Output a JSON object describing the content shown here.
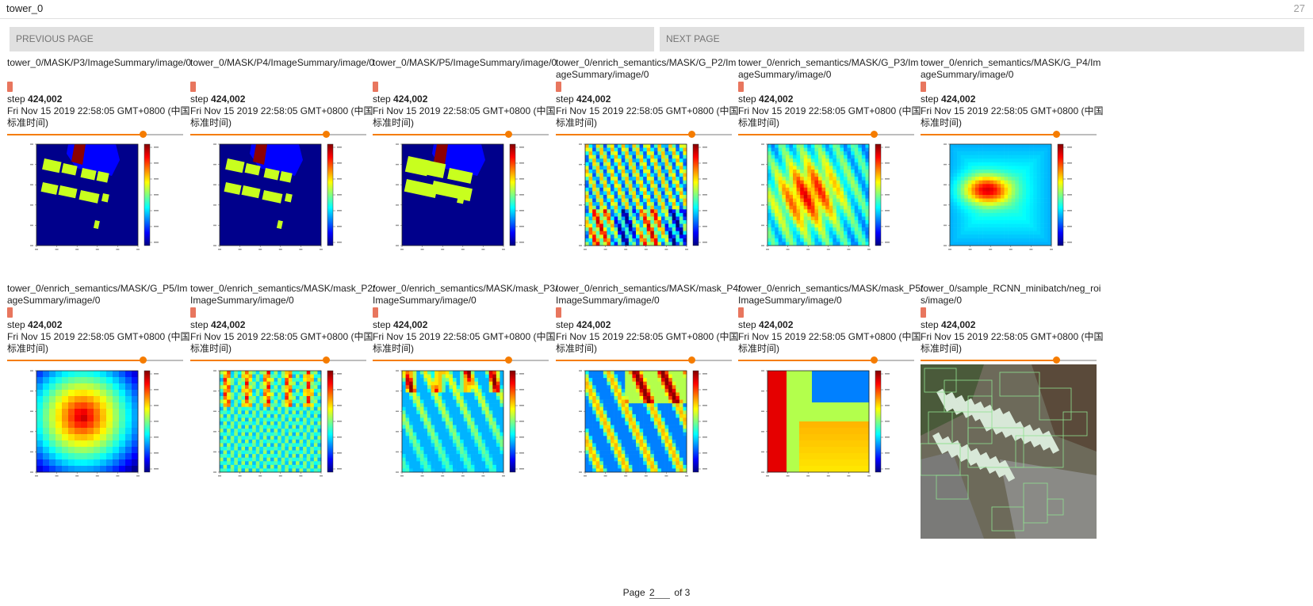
{
  "header": {
    "run_name": "tower_0",
    "count": "27"
  },
  "pager": {
    "prev_label": "PREVIOUS PAGE",
    "next_label": "NEXT PAGE"
  },
  "cards": [
    {
      "tag": "tower_0/MASK/P3/ImageSummary/image/0",
      "step_prefix": "step",
      "step": "424,002",
      "time": "Fri Nov 15 2019 22:58:05 GMT+0800 (中国标准时间)",
      "slider": 0.77,
      "image": "mask-p3"
    },
    {
      "tag": "tower_0/MASK/P4/ImageSummary/image/0",
      "step_prefix": "step",
      "step": "424,002",
      "time": "Fri Nov 15 2019 22:58:05 GMT+0800 (中国标准时间)",
      "slider": 0.77,
      "image": "mask-p4"
    },
    {
      "tag": "tower_0/MASK/P5/ImageSummary/image/0",
      "step_prefix": "step",
      "step": "424,002",
      "time": "Fri Nov 15 2019 22:58:05 GMT+0800 (中国标准时间)",
      "slider": 0.77,
      "image": "mask-p5"
    },
    {
      "tag": "tower_0/enrich_semantics/MASK/G_P2/ImageSummary/image/0",
      "step_prefix": "step",
      "step": "424,002",
      "time": "Fri Nov 15 2019 22:58:05 GMT+0800 (中国标准时间)",
      "slider": 0.77,
      "image": "heat-g-p2"
    },
    {
      "tag": "tower_0/enrich_semantics/MASK/G_P3/ImageSummary/image/0",
      "step_prefix": "step",
      "step": "424,002",
      "time": "Fri Nov 15 2019 22:58:05 GMT+0800 (中国标准时间)",
      "slider": 0.77,
      "image": "heat-g-p3"
    },
    {
      "tag": "tower_0/enrich_semantics/MASK/G_P4/ImageSummary/image/0",
      "step_prefix": "step",
      "step": "424,002",
      "time": "Fri Nov 15 2019 22:58:05 GMT+0800 (中国标准时间)",
      "slider": 0.77,
      "image": "heat-g-p4"
    },
    {
      "tag": "tower_0/enrich_semantics/MASK/G_P5/ImageSummary/image/0",
      "step_prefix": "step",
      "step": "424,002",
      "time": "Fri Nov 15 2019 22:58:05 GMT+0800 (中国标准时间)",
      "slider": 0.77,
      "image": "heat-g-p5"
    },
    {
      "tag": "tower_0/enrich_semantics/MASK/mask_P2/ImageSummary/image/0",
      "step_prefix": "step",
      "step": "424,002",
      "time": "Fri Nov 15 2019 22:58:05 GMT+0800 (中国标准时间)",
      "slider": 0.77,
      "image": "heat-mask-p2"
    },
    {
      "tag": "tower_0/enrich_semantics/MASK/mask_P3/ImageSummary/image/0",
      "step_prefix": "step",
      "step": "424,002",
      "time": "Fri Nov 15 2019 22:58:05 GMT+0800 (中国标准时间)",
      "slider": 0.77,
      "image": "heat-mask-p3"
    },
    {
      "tag": "tower_0/enrich_semantics/MASK/mask_P4/ImageSummary/image/0",
      "step_prefix": "step",
      "step": "424,002",
      "time": "Fri Nov 15 2019 22:58:05 GMT+0800 (中国标准时间)",
      "slider": 0.77,
      "image": "heat-mask-p4"
    },
    {
      "tag": "tower_0/enrich_semantics/MASK/mask_P5/ImageSummary/image/0",
      "step_prefix": "step",
      "step": "424,002",
      "time": "Fri Nov 15 2019 22:58:05 GMT+0800 (中国标准时间)",
      "slider": 0.77,
      "image": "heat-mask-p5"
    },
    {
      "tag": "tower_0/sample_RCNN_minibatch/neg_rois/image/0",
      "step_prefix": "step",
      "step": "424,002",
      "time": "Fri Nov 15 2019 22:58:05 GMT+0800 (中国标准时间)",
      "slider": 0.77,
      "image": "aerial-neg-rois"
    }
  ],
  "footer": {
    "page_label": "Page",
    "page_value": "2",
    "of_label": "of 3"
  },
  "colors": {
    "accent": "#f57c00",
    "badge": "#e8765e",
    "button_bg": "#e0e0e0"
  }
}
